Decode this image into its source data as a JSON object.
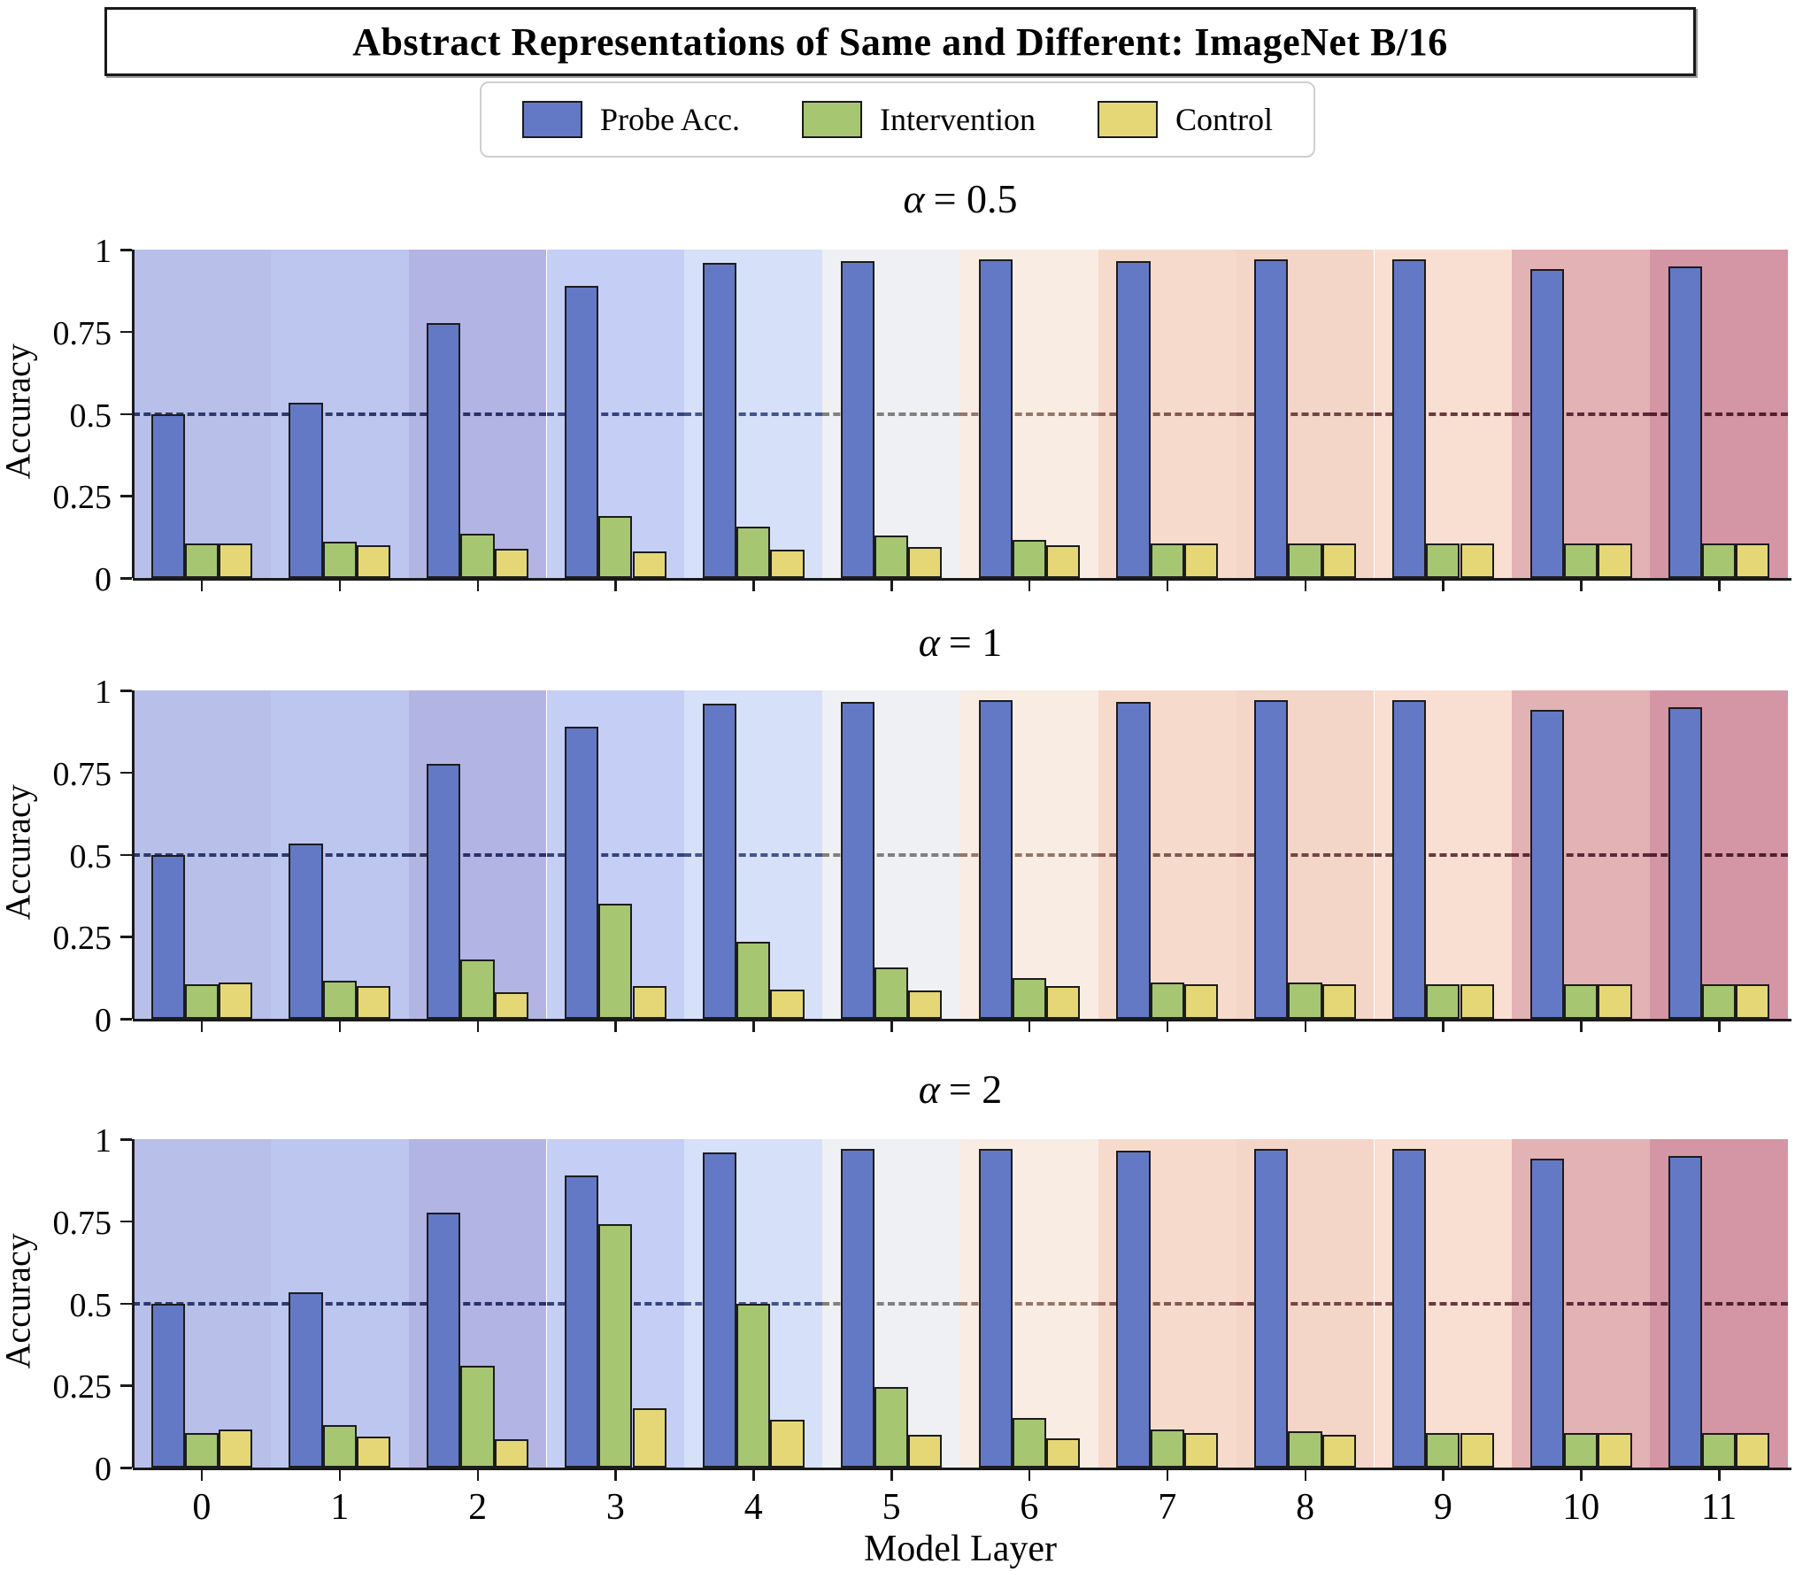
{
  "figure_title": "Abstract Representations of Same and Different: ImageNet B/16",
  "legend": [
    {
      "label": "Probe Acc.",
      "color": "#6379c6"
    },
    {
      "label": "Intervention",
      "color": "#a6c671"
    },
    {
      "label": "Control",
      "color": "#e5d775"
    }
  ],
  "axes": {
    "ylabel": "Accuracy",
    "xlabel": "Model Layer",
    "ytick_values": [
      0,
      0.25,
      0.5,
      0.75,
      1
    ],
    "ytick_labels": [
      "0",
      "0.25",
      "0.5",
      "0.75",
      "1"
    ]
  },
  "colors": {
    "bar_edge": "#1c1c1c",
    "bands": [
      "#b8bfe9",
      "#bdc6ee",
      "#b2b4e3",
      "#c5cff5",
      "#d6e0f9",
      "#eef0f4",
      "#f9ece3",
      "#f6dbcd",
      "#f4d6c8",
      "#f8dfd2",
      "#e3b2b5",
      "#d495a5"
    ],
    "chance_dash": [
      "#2e3a6e",
      "#2e3a6e",
      "#2a3166",
      "#36447e",
      "#44548c",
      "#80807f",
      "#96766a",
      "#845850",
      "#744546",
      "#68393f",
      "#5c2a36",
      "#521f2e"
    ]
  },
  "chart_data": [
    {
      "type": "bar",
      "title": "α = 0.5",
      "alpha_symbol": "α",
      "alpha_value": "= 0.5",
      "categories": [
        "0",
        "1",
        "2",
        "3",
        "4",
        "5",
        "6",
        "7",
        "8",
        "9",
        "10",
        "11"
      ],
      "series": [
        {
          "name": "Probe Acc.",
          "values": [
            0.5,
            0.535,
            0.775,
            0.89,
            0.96,
            0.965,
            0.97,
            0.965,
            0.97,
            0.97,
            0.94,
            0.95
          ]
        },
        {
          "name": "Intervention",
          "values": [
            0.105,
            0.11,
            0.135,
            0.19,
            0.155,
            0.13,
            0.115,
            0.105,
            0.105,
            0.105,
            0.105,
            0.105
          ]
        },
        {
          "name": "Control",
          "values": [
            0.105,
            0.1,
            0.09,
            0.08,
            0.085,
            0.095,
            0.1,
            0.105,
            0.105,
            0.105,
            0.105,
            0.105
          ]
        }
      ],
      "xlabel": "",
      "ylabel": "Accuracy",
      "ylim": [
        0,
        1
      ],
      "hline": 0.5
    },
    {
      "type": "bar",
      "title": "α = 1",
      "alpha_symbol": "α",
      "alpha_value": "= 1",
      "categories": [
        "0",
        "1",
        "2",
        "3",
        "4",
        "5",
        "6",
        "7",
        "8",
        "9",
        "10",
        "11"
      ],
      "series": [
        {
          "name": "Probe Acc.",
          "values": [
            0.5,
            0.535,
            0.775,
            0.89,
            0.96,
            0.965,
            0.97,
            0.965,
            0.97,
            0.97,
            0.94,
            0.95
          ]
        },
        {
          "name": "Intervention",
          "values": [
            0.105,
            0.115,
            0.18,
            0.35,
            0.235,
            0.155,
            0.125,
            0.11,
            0.11,
            0.105,
            0.105,
            0.105
          ]
        },
        {
          "name": "Control",
          "values": [
            0.11,
            0.1,
            0.08,
            0.1,
            0.09,
            0.085,
            0.1,
            0.105,
            0.105,
            0.105,
            0.105,
            0.105
          ]
        }
      ],
      "xlabel": "",
      "ylabel": "Accuracy",
      "ylim": [
        0,
        1
      ],
      "hline": 0.5
    },
    {
      "type": "bar",
      "title": "α = 2",
      "alpha_symbol": "α",
      "alpha_value": "= 2",
      "categories": [
        "0",
        "1",
        "2",
        "3",
        "4",
        "5",
        "6",
        "7",
        "8",
        "9",
        "10",
        "11"
      ],
      "series": [
        {
          "name": "Probe Acc.",
          "values": [
            0.5,
            0.535,
            0.775,
            0.89,
            0.96,
            0.97,
            0.97,
            0.965,
            0.97,
            0.97,
            0.94,
            0.95
          ]
        },
        {
          "name": "Intervention",
          "values": [
            0.105,
            0.13,
            0.31,
            0.74,
            0.5,
            0.245,
            0.15,
            0.115,
            0.11,
            0.105,
            0.105,
            0.105
          ]
        },
        {
          "name": "Control",
          "values": [
            0.115,
            0.095,
            0.085,
            0.18,
            0.145,
            0.1,
            0.09,
            0.105,
            0.1,
            0.105,
            0.105,
            0.105
          ]
        }
      ],
      "xlabel": "Model Layer",
      "ylabel": "Accuracy",
      "ylim": [
        0,
        1
      ],
      "hline": 0.5
    }
  ]
}
